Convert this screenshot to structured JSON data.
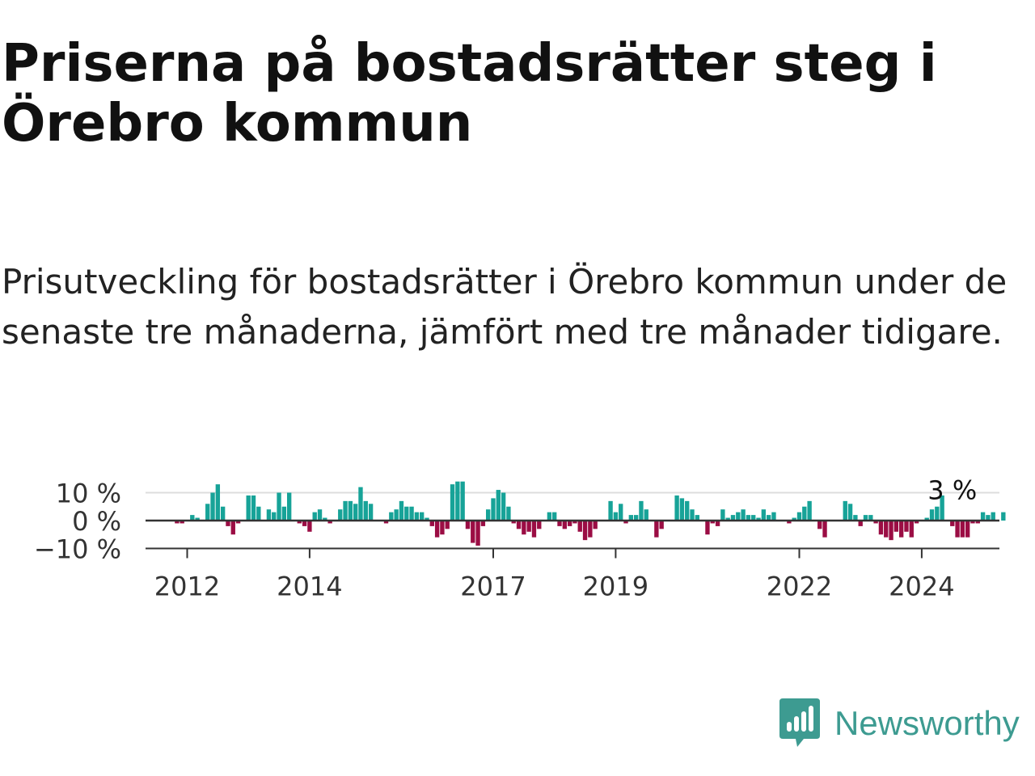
{
  "title": "Priserna på bostadsrätter steg i Örebro kommun",
  "subtitle": "Prisutveckling för bostadsrätter i Örebro kommun under de senaste tre månaderna, jämfört med tre månader tidigare.",
  "brand": {
    "name": "Newsworthy",
    "color": "#3d9b91",
    "icon": "bar-chart-speech-bubble-icon"
  },
  "chart_data": {
    "type": "bar",
    "x_start": "2011-11",
    "x_end": "2024-09",
    "ylim": [
      -10,
      10
    ],
    "y_ticks": [
      {
        "value": 10,
        "label": "10 %"
      },
      {
        "value": 0,
        "label": "0 %"
      },
      {
        "value": -10,
        "label": "−10 %"
      }
    ],
    "x_ticks": [
      {
        "date": "2012-01",
        "label": "2012"
      },
      {
        "date": "2014-01",
        "label": "2014"
      },
      {
        "date": "2017-01",
        "label": "2017"
      },
      {
        "date": "2019-01",
        "label": "2019"
      },
      {
        "date": "2022-01",
        "label": "2022"
      },
      {
        "date": "2024-01",
        "label": "2024"
      }
    ],
    "annotation": {
      "text": "3 %",
      "date": "2024-07",
      "value": 3
    },
    "positive_color": "#17a398",
    "negative_color": "#9b0d44",
    "grid": true,
    "legend": "none",
    "values": [
      -1,
      -1,
      0,
      2,
      1,
      0,
      6,
      10,
      13,
      5,
      -2,
      -5,
      -1,
      0,
      9,
      9,
      5,
      0,
      4,
      3,
      10,
      5,
      10,
      0,
      -1,
      -2,
      -4,
      3,
      4,
      1,
      -1,
      0,
      4,
      7,
      7,
      6,
      12,
      7,
      6,
      0,
      0,
      -1,
      3,
      4,
      7,
      5,
      5,
      3,
      3,
      1,
      -2,
      -6,
      -5,
      -3,
      13,
      14,
      14,
      -3,
      -8,
      -9,
      -2,
      4,
      8,
      11,
      10,
      5,
      -1,
      -3,
      -5,
      -4,
      -6,
      -3,
      0,
      3,
      3,
      -2,
      -3,
      -2,
      -1,
      -4,
      -7,
      -6,
      -3,
      0,
      0,
      7,
      3,
      6,
      -1,
      2,
      2,
      7,
      4,
      0,
      -6,
      -3,
      0,
      0,
      9,
      8,
      7,
      4,
      2,
      0,
      -5,
      -1,
      -2,
      4,
      1,
      2,
      3,
      4,
      2,
      2,
      1,
      4,
      2,
      3,
      0,
      0,
      -1,
      1,
      3,
      5,
      7,
      0,
      -3,
      -6,
      0,
      0,
      0,
      7,
      6,
      2,
      -2,
      2,
      2,
      -1,
      -5,
      -6,
      -7,
      -4,
      -6,
      -4,
      -6,
      -1,
      0,
      1,
      4,
      5,
      9,
      0,
      -2,
      -6,
      -6,
      -6,
      -1,
      -1,
      3,
      2,
      3,
      0,
      3
    ]
  }
}
